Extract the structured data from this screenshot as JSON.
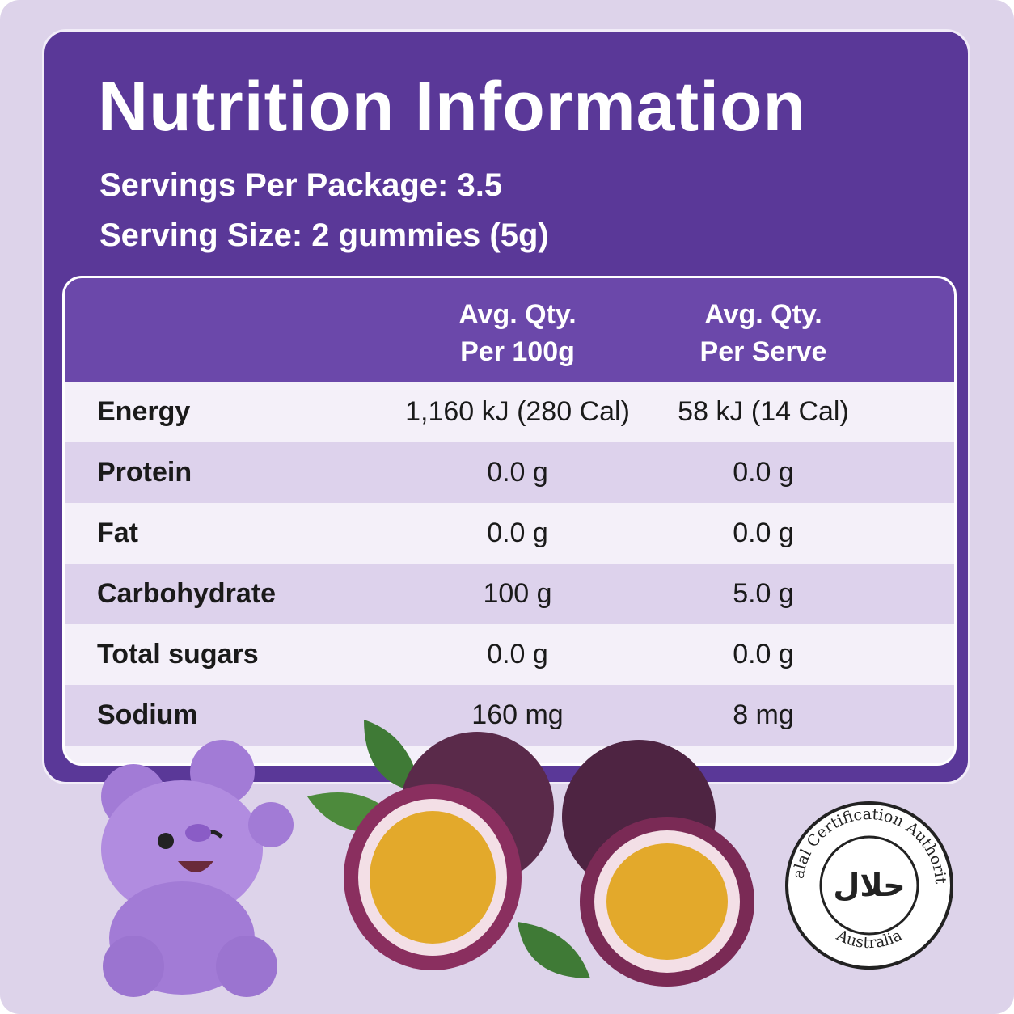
{
  "header": {
    "title": "Nutrition Information",
    "servings_per_package": "Servings Per Package: 3.5",
    "serving_size": "Serving Size: 2 gummies (5g)"
  },
  "table": {
    "columns": [
      [
        "Avg. Qty.",
        "Per 100g"
      ],
      [
        "Avg. Qty.",
        "Per Serve"
      ]
    ],
    "rows": [
      [
        "Energy",
        "1,160 kJ (280 Cal)",
        "58 kJ (14 Cal)"
      ],
      [
        "Protein",
        "0.0 g",
        "0.0 g"
      ],
      [
        "Fat",
        "0.0 g",
        "0.0 g"
      ],
      [
        "Carbohydrate",
        "100 g",
        "5.0 g"
      ],
      [
        "Total sugars",
        "0.0 g",
        "0.0 g"
      ],
      [
        "Sodium",
        "160 mg",
        "8 mg"
      ]
    ]
  },
  "badge": {
    "ring_top": "Halal Certification Authority",
    "ring_bottom": "Australia",
    "center": "حلال"
  }
}
